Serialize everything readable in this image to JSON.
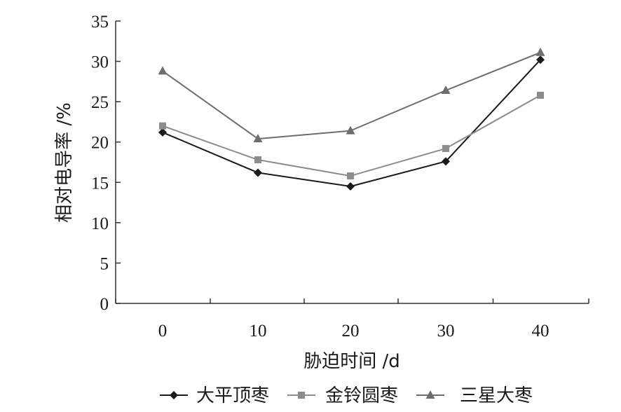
{
  "chart_data": {
    "type": "line",
    "x": [
      0,
      10,
      20,
      30,
      40
    ],
    "xlabel": "胁迫时间 /d",
    "ylabel": "相对电导率 /%",
    "ylim": [
      0,
      35
    ],
    "yticks": [
      0,
      5,
      10,
      15,
      20,
      25,
      30,
      35
    ],
    "xticks": [
      0,
      10,
      20,
      30,
      40
    ],
    "grid": false,
    "legend_position": "bottom",
    "series": [
      {
        "name": "大平顶枣",
        "values": [
          21.2,
          16.2,
          14.5,
          17.6,
          30.2
        ],
        "marker": "diamond",
        "color": "#1a1a1a"
      },
      {
        "name": "金铃圆枣",
        "values": [
          22.0,
          17.8,
          15.8,
          19.2,
          25.8
        ],
        "marker": "square",
        "color": "#8c8c8c"
      },
      {
        "name": "三星大枣",
        "values": [
          28.8,
          20.4,
          21.4,
          26.4,
          31.1
        ],
        "marker": "triangle",
        "color": "#6e6e6e"
      }
    ]
  }
}
